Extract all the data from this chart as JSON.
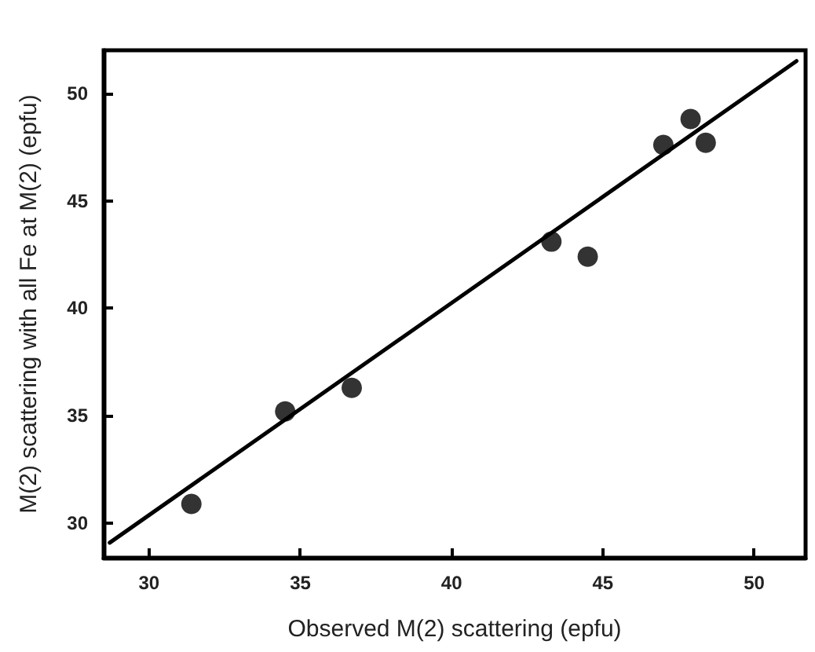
{
  "chart_data": {
    "type": "scatter",
    "xlabel": "Observed M(2) scattering (epfu)",
    "ylabel": "M(2) scattering with all Fe at M(2) (epfu)",
    "xlim": [
      28.5,
      51.7
    ],
    "ylim": [
      28.4,
      52
    ],
    "xticks": [
      30,
      35,
      40,
      45,
      50
    ],
    "yticks": [
      30,
      35,
      40,
      45,
      50
    ],
    "grid": false,
    "marker": "circle",
    "series": [
      {
        "color": "#000000",
        "x": [
          31.4,
          34.5,
          36.7,
          43.3,
          44.5,
          47.0,
          47.9,
          48.4
        ],
        "values": [
          30.9,
          35.2,
          36.3,
          43.1,
          42.4,
          47.6,
          48.8,
          47.7
        ]
      },
      {
        "type": "line",
        "color": "#000000",
        "marker": "none",
        "line_style": "solid",
        "x": [
          28.7,
          51.4
        ],
        "values": [
          29.1,
          51.5
        ]
      }
    ]
  }
}
